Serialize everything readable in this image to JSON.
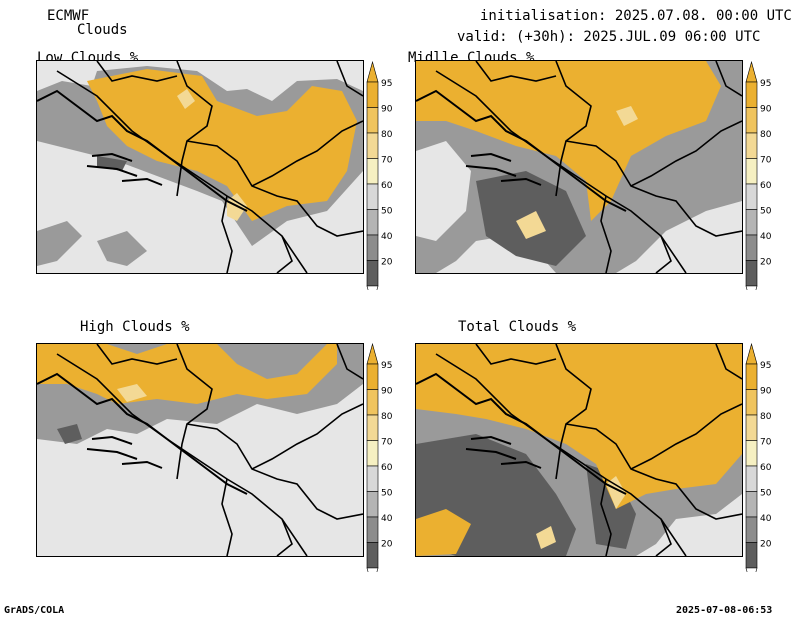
{
  "header": {
    "model": "ECMWF",
    "product": "Clouds",
    "init_line": "initialisation: 2025.07.08. 00:00 UTC",
    "valid_line": "valid: (+30h): 2025.JUL.09 06:00 UTC"
  },
  "panels": [
    {
      "title": "Low Clouds %"
    },
    {
      "title": "Midlle Clouds %"
    },
    {
      "title": "High Clouds %"
    },
    {
      "title": "Total Clouds %"
    }
  ],
  "legend": {
    "levels": [
      "95",
      "90",
      "80",
      "70",
      "60",
      "50",
      "40",
      "20"
    ],
    "colors": [
      "#ebb030",
      "#f0c45e",
      "#f3d995",
      "#f6f0c2",
      "#d8d8d8",
      "#b4b4b4",
      "#8c8c8c",
      "#5e5e5e"
    ]
  },
  "colors": {
    "clear": "#e6e6e6",
    "cloud_high": "#ebb030",
    "cloud_light": "#f3d995",
    "cloud_grey_mid": "#9a9a9a",
    "cloud_grey_dark": "#5e5e5e",
    "border": "#000000"
  },
  "footer": {
    "left": "GrADS/COLA",
    "right": "2025-07-08-06:53"
  }
}
